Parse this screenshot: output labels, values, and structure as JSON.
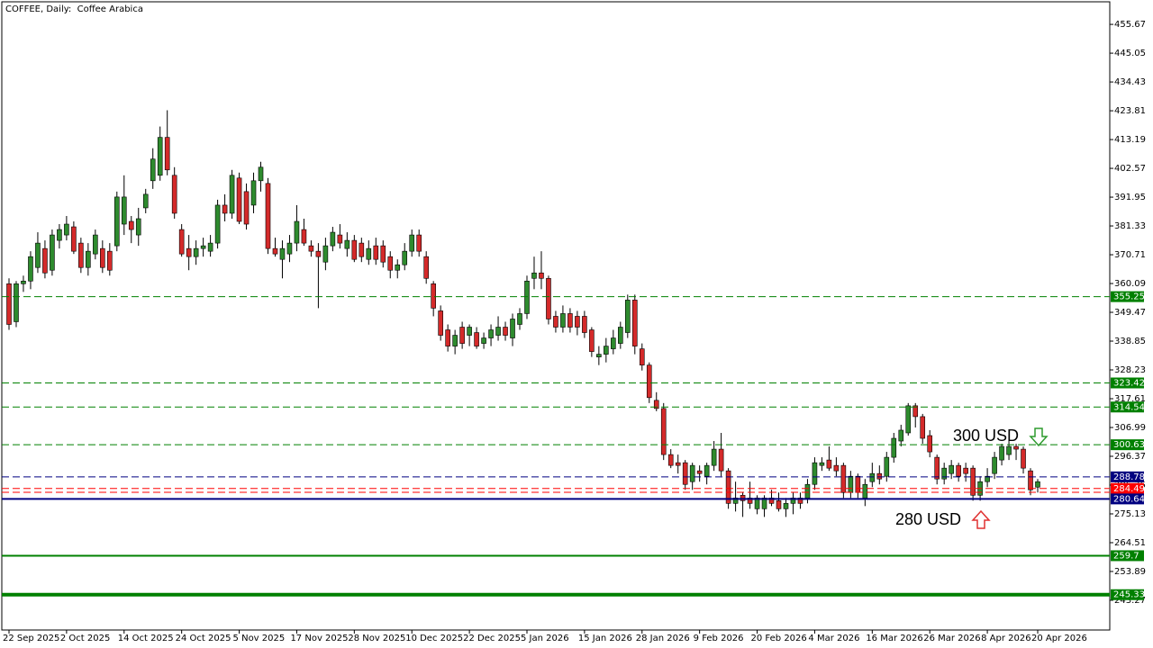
{
  "chart_data": {
    "type": "candlestick",
    "title": "COFFEE, Daily:  Coffee Arabica",
    "categories": [
      "22 Sep 2025",
      null,
      null,
      null,
      null,
      null,
      null,
      null,
      "2 Oct 2025",
      null,
      null,
      null,
      null,
      null,
      null,
      null,
      "14 Oct 2025",
      null,
      null,
      null,
      null,
      null,
      null,
      null,
      "24 Oct 2025",
      null,
      null,
      null,
      null,
      null,
      null,
      null,
      "5 Nov 2025",
      null,
      null,
      null,
      null,
      null,
      null,
      null,
      "17 Nov 2025",
      null,
      null,
      null,
      null,
      null,
      null,
      null,
      "28 Nov 2025",
      null,
      null,
      null,
      null,
      null,
      null,
      null,
      "10 Dec 2025",
      null,
      null,
      null,
      null,
      null,
      null,
      null,
      "22 Dec 2025",
      null,
      null,
      null,
      null,
      null,
      null,
      null,
      "5 Jan 2026",
      null,
      null,
      null,
      null,
      null,
      null,
      null,
      "15 Jan 2026",
      null,
      null,
      null,
      null,
      null,
      null,
      null,
      "28 Jan 2026",
      null,
      null,
      null,
      null,
      null,
      null,
      null,
      "9 Feb 2026",
      null,
      null,
      null,
      null,
      null,
      null,
      null,
      "20 Feb 2026",
      null,
      null,
      null,
      null,
      null,
      null,
      null,
      "4 Mar 2026",
      null,
      null,
      null,
      null,
      null,
      null,
      null,
      "16 Mar 2026",
      null,
      null,
      null,
      null,
      null,
      null,
      null,
      "26 Mar 2026",
      null,
      null,
      null,
      null,
      null,
      null,
      null,
      "8 Apr 2026",
      null,
      null,
      null,
      null,
      null,
      null,
      "20 Apr 2026"
    ],
    "ohlc": [
      [
        360,
        362,
        343,
        345
      ],
      [
        346,
        361,
        344,
        360
      ],
      [
        360,
        363,
        357,
        361
      ],
      [
        361,
        372,
        358,
        370
      ],
      [
        366,
        379,
        364,
        375
      ],
      [
        373,
        376,
        362,
        364
      ],
      [
        365,
        380,
        363,
        378
      ],
      [
        376,
        382,
        373,
        380
      ],
      [
        378,
        385,
        376,
        382
      ],
      [
        381,
        383,
        371,
        372
      ],
      [
        375,
        377,
        364,
        366
      ],
      [
        366,
        375,
        363,
        372
      ],
      [
        371,
        380,
        369,
        378
      ],
      [
        373,
        376,
        364,
        366
      ],
      [
        372,
        375,
        363,
        365
      ],
      [
        374,
        394,
        372,
        392
      ],
      [
        382,
        400,
        378,
        392
      ],
      [
        383,
        385,
        375,
        380
      ],
      [
        378,
        388,
        374,
        384
      ],
      [
        388,
        395,
        386,
        393
      ],
      [
        398,
        410,
        395,
        406
      ],
      [
        400,
        418,
        398,
        414
      ],
      [
        414,
        424,
        400,
        402
      ],
      [
        400,
        403,
        384,
        386
      ],
      [
        380,
        382,
        370,
        371
      ],
      [
        373,
        378,
        365,
        370
      ],
      [
        370,
        376,
        367,
        373
      ],
      [
        373,
        377,
        370,
        374
      ],
      [
        372,
        378,
        370,
        375
      ],
      [
        375,
        391,
        373,
        389
      ],
      [
        389,
        393,
        383,
        386
      ],
      [
        386,
        402,
        384,
        400
      ],
      [
        399,
        401,
        382,
        383
      ],
      [
        394,
        397,
        380,
        382
      ],
      [
        389,
        401,
        386,
        398
      ],
      [
        398,
        405,
        394,
        403
      ],
      [
        397,
        399,
        371,
        373
      ],
      [
        373,
        377,
        370,
        371
      ],
      [
        369,
        376,
        362,
        373
      ],
      [
        371,
        378,
        368,
        375
      ],
      [
        375,
        389,
        372,
        383
      ],
      [
        380,
        384,
        374,
        375
      ],
      [
        374,
        376,
        370,
        372
      ],
      [
        372,
        375,
        351,
        370
      ],
      [
        368,
        377,
        365,
        374
      ],
      [
        374,
        381,
        372,
        379
      ],
      [
        378,
        382,
        373,
        375
      ],
      [
        373,
        379,
        370,
        376
      ],
      [
        376,
        378,
        368,
        369
      ],
      [
        375,
        377,
        368,
        370
      ],
      [
        369,
        376,
        367,
        373
      ],
      [
        374,
        377,
        367,
        369
      ],
      [
        374,
        376,
        366,
        368
      ],
      [
        370,
        372,
        362,
        365
      ],
      [
        365,
        369,
        362,
        367
      ],
      [
        367,
        375,
        365,
        372
      ],
      [
        372,
        380,
        370,
        378
      ],
      [
        378,
        380,
        370,
        372
      ],
      [
        370,
        372,
        360,
        362
      ],
      [
        360,
        361,
        348,
        351
      ],
      [
        350,
        352,
        339,
        341
      ],
      [
        343,
        345,
        335,
        337
      ],
      [
        337,
        343,
        334,
        341
      ],
      [
        344,
        346,
        336,
        338
      ],
      [
        341,
        345,
        337,
        344
      ],
      [
        342,
        344,
        336,
        337
      ],
      [
        338,
        342,
        336,
        340
      ],
      [
        340,
        345,
        337,
        343
      ],
      [
        341,
        348,
        339,
        344
      ],
      [
        344,
        346,
        339,
        341
      ],
      [
        340,
        349,
        337,
        347
      ],
      [
        345,
        351,
        343,
        349
      ],
      [
        349,
        363,
        347,
        361
      ],
      [
        362,
        370,
        358,
        364
      ],
      [
        364,
        372,
        358,
        362
      ],
      [
        362,
        363,
        345,
        347
      ],
      [
        348,
        350,
        342,
        344
      ],
      [
        344,
        352,
        342,
        349
      ],
      [
        349,
        351,
        342,
        344
      ],
      [
        348,
        350,
        341,
        344
      ],
      [
        348,
        350,
        340,
        342
      ],
      [
        343,
        344,
        333,
        335
      ],
      [
        333,
        337,
        330,
        334
      ],
      [
        334,
        340,
        331,
        337
      ],
      [
        336,
        343,
        334,
        340
      ],
      [
        338,
        346,
        336,
        344
      ],
      [
        342,
        356,
        340,
        354
      ],
      [
        354,
        356,
        334,
        337
      ],
      [
        336,
        338,
        328,
        330
      ],
      [
        330,
        331,
        316,
        318
      ],
      [
        317,
        320,
        313,
        314
      ],
      [
        314,
        316,
        295,
        297
      ],
      [
        297,
        299,
        292,
        293
      ],
      [
        294,
        297,
        290,
        293
      ],
      [
        294,
        295,
        284,
        286
      ],
      [
        287,
        294,
        284,
        293
      ],
      [
        291,
        293,
        287,
        290
      ],
      [
        289,
        294,
        286,
        293
      ],
      [
        293,
        302,
        291,
        299
      ],
      [
        299,
        305,
        289,
        291
      ],
      [
        291,
        292,
        277,
        279
      ],
      [
        279,
        287,
        276,
        281
      ],
      [
        282,
        283,
        274,
        280
      ],
      [
        281,
        287,
        277,
        279
      ],
      [
        277,
        282,
        275,
        281
      ],
      [
        277,
        282,
        274,
        281
      ],
      [
        281,
        284,
        278,
        279
      ],
      [
        280,
        283,
        276,
        277
      ],
      [
        277,
        281,
        274,
        279
      ],
      [
        279,
        283,
        275,
        281
      ],
      [
        281,
        283,
        277,
        279
      ],
      [
        281,
        288,
        279,
        286
      ],
      [
        286,
        296,
        284,
        294
      ],
      [
        293,
        296,
        291,
        294
      ],
      [
        295,
        300,
        291,
        292
      ],
      [
        293,
        296,
        289,
        291
      ],
      [
        293,
        294,
        281,
        283
      ],
      [
        283,
        291,
        281,
        289
      ],
      [
        289,
        290,
        281,
        283
      ],
      [
        281,
        288,
        278,
        286
      ],
      [
        287,
        294,
        285,
        290
      ],
      [
        290,
        293,
        286,
        288
      ],
      [
        289,
        298,
        287,
        296
      ],
      [
        296,
        305,
        294,
        303
      ],
      [
        302,
        308,
        300,
        306
      ],
      [
        305,
        316,
        304,
        315
      ],
      [
        315,
        316,
        307,
        311
      ],
      [
        311,
        312,
        301,
        303
      ],
      [
        304,
        306,
        296,
        298
      ],
      [
        296,
        297,
        286,
        288
      ],
      [
        288,
        294,
        286,
        292
      ],
      [
        290,
        295,
        288,
        293
      ],
      [
        293,
        294,
        287,
        289
      ],
      [
        292,
        294,
        287,
        290
      ],
      [
        292,
        293,
        280,
        282
      ],
      [
        282,
        289,
        280,
        287
      ],
      [
        287,
        292,
        285,
        289
      ],
      [
        290,
        298,
        288,
        296
      ],
      [
        295,
        301,
        293,
        300
      ],
      [
        297,
        302,
        295,
        300
      ],
      [
        300,
        301,
        295,
        299
      ],
      [
        299,
        300,
        290,
        292
      ],
      [
        291,
        292,
        282,
        284
      ],
      [
        285,
        288,
        283,
        287
      ]
    ],
    "up_color": "#2e8b2e",
    "down_color": "#d42a2a",
    "ylim": [
      232.3,
      464
    ],
    "yticks": [
      455.67,
      445.05,
      434.43,
      423.81,
      413.19,
      402.57,
      391.95,
      381.33,
      370.71,
      360.09,
      349.47,
      338.85,
      328.23,
      317.61,
      306.99,
      296.37,
      285.75,
      275.13,
      264.51,
      253.89,
      243.27
    ],
    "grid": false,
    "levels": [
      {
        "value": 355.25,
        "color": "#008000",
        "style": "dashed"
      },
      {
        "value": 323.42,
        "color": "#008000",
        "style": "dashed"
      },
      {
        "value": 314.54,
        "color": "#008000",
        "style": "dashed"
      },
      {
        "value": 300.63,
        "color": "#008000",
        "style": "dashed"
      },
      {
        "value": 288.78,
        "color": "#000080",
        "style": "dashed"
      },
      {
        "value": 283.1,
        "color": "#ff0000",
        "style": "dashed"
      },
      {
        "value": 284.49,
        "color": "#ff0000",
        "style": "dashed"
      },
      {
        "value": 280.64,
        "color": "#000080",
        "style": "solid"
      },
      {
        "value": 259.7,
        "color": "#008000",
        "style": "solid"
      },
      {
        "value": 245.33,
        "color": "#008000",
        "style": "bold"
      }
    ],
    "annotations": [
      {
        "text": "300 USD"
      },
      {
        "text": "280 USD"
      }
    ]
  }
}
